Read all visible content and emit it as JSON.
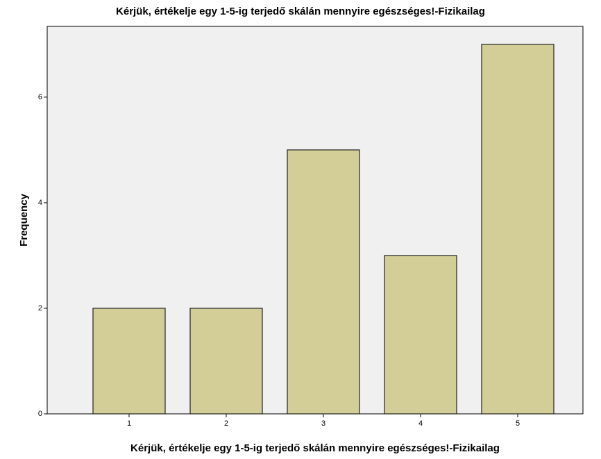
{
  "chart_data": {
    "type": "bar",
    "title": "Kérjük, értékelje egy 1-5-ig terjedő skálán mennyire egészséges!-Fizikailag",
    "x_label": "Kérjük, értékelje egy 1-5-ig terjedő skálán mennyire egészséges!-Fizikailag",
    "y_label": "Frequency",
    "categories": [
      "1",
      "2",
      "3",
      "4",
      "5"
    ],
    "values": [
      2,
      2,
      5,
      3,
      7
    ],
    "color": "#d3ce97",
    "ylim": [
      0,
      7.34
    ],
    "yticks": [
      0,
      2,
      4,
      6
    ],
    "grid": false
  }
}
